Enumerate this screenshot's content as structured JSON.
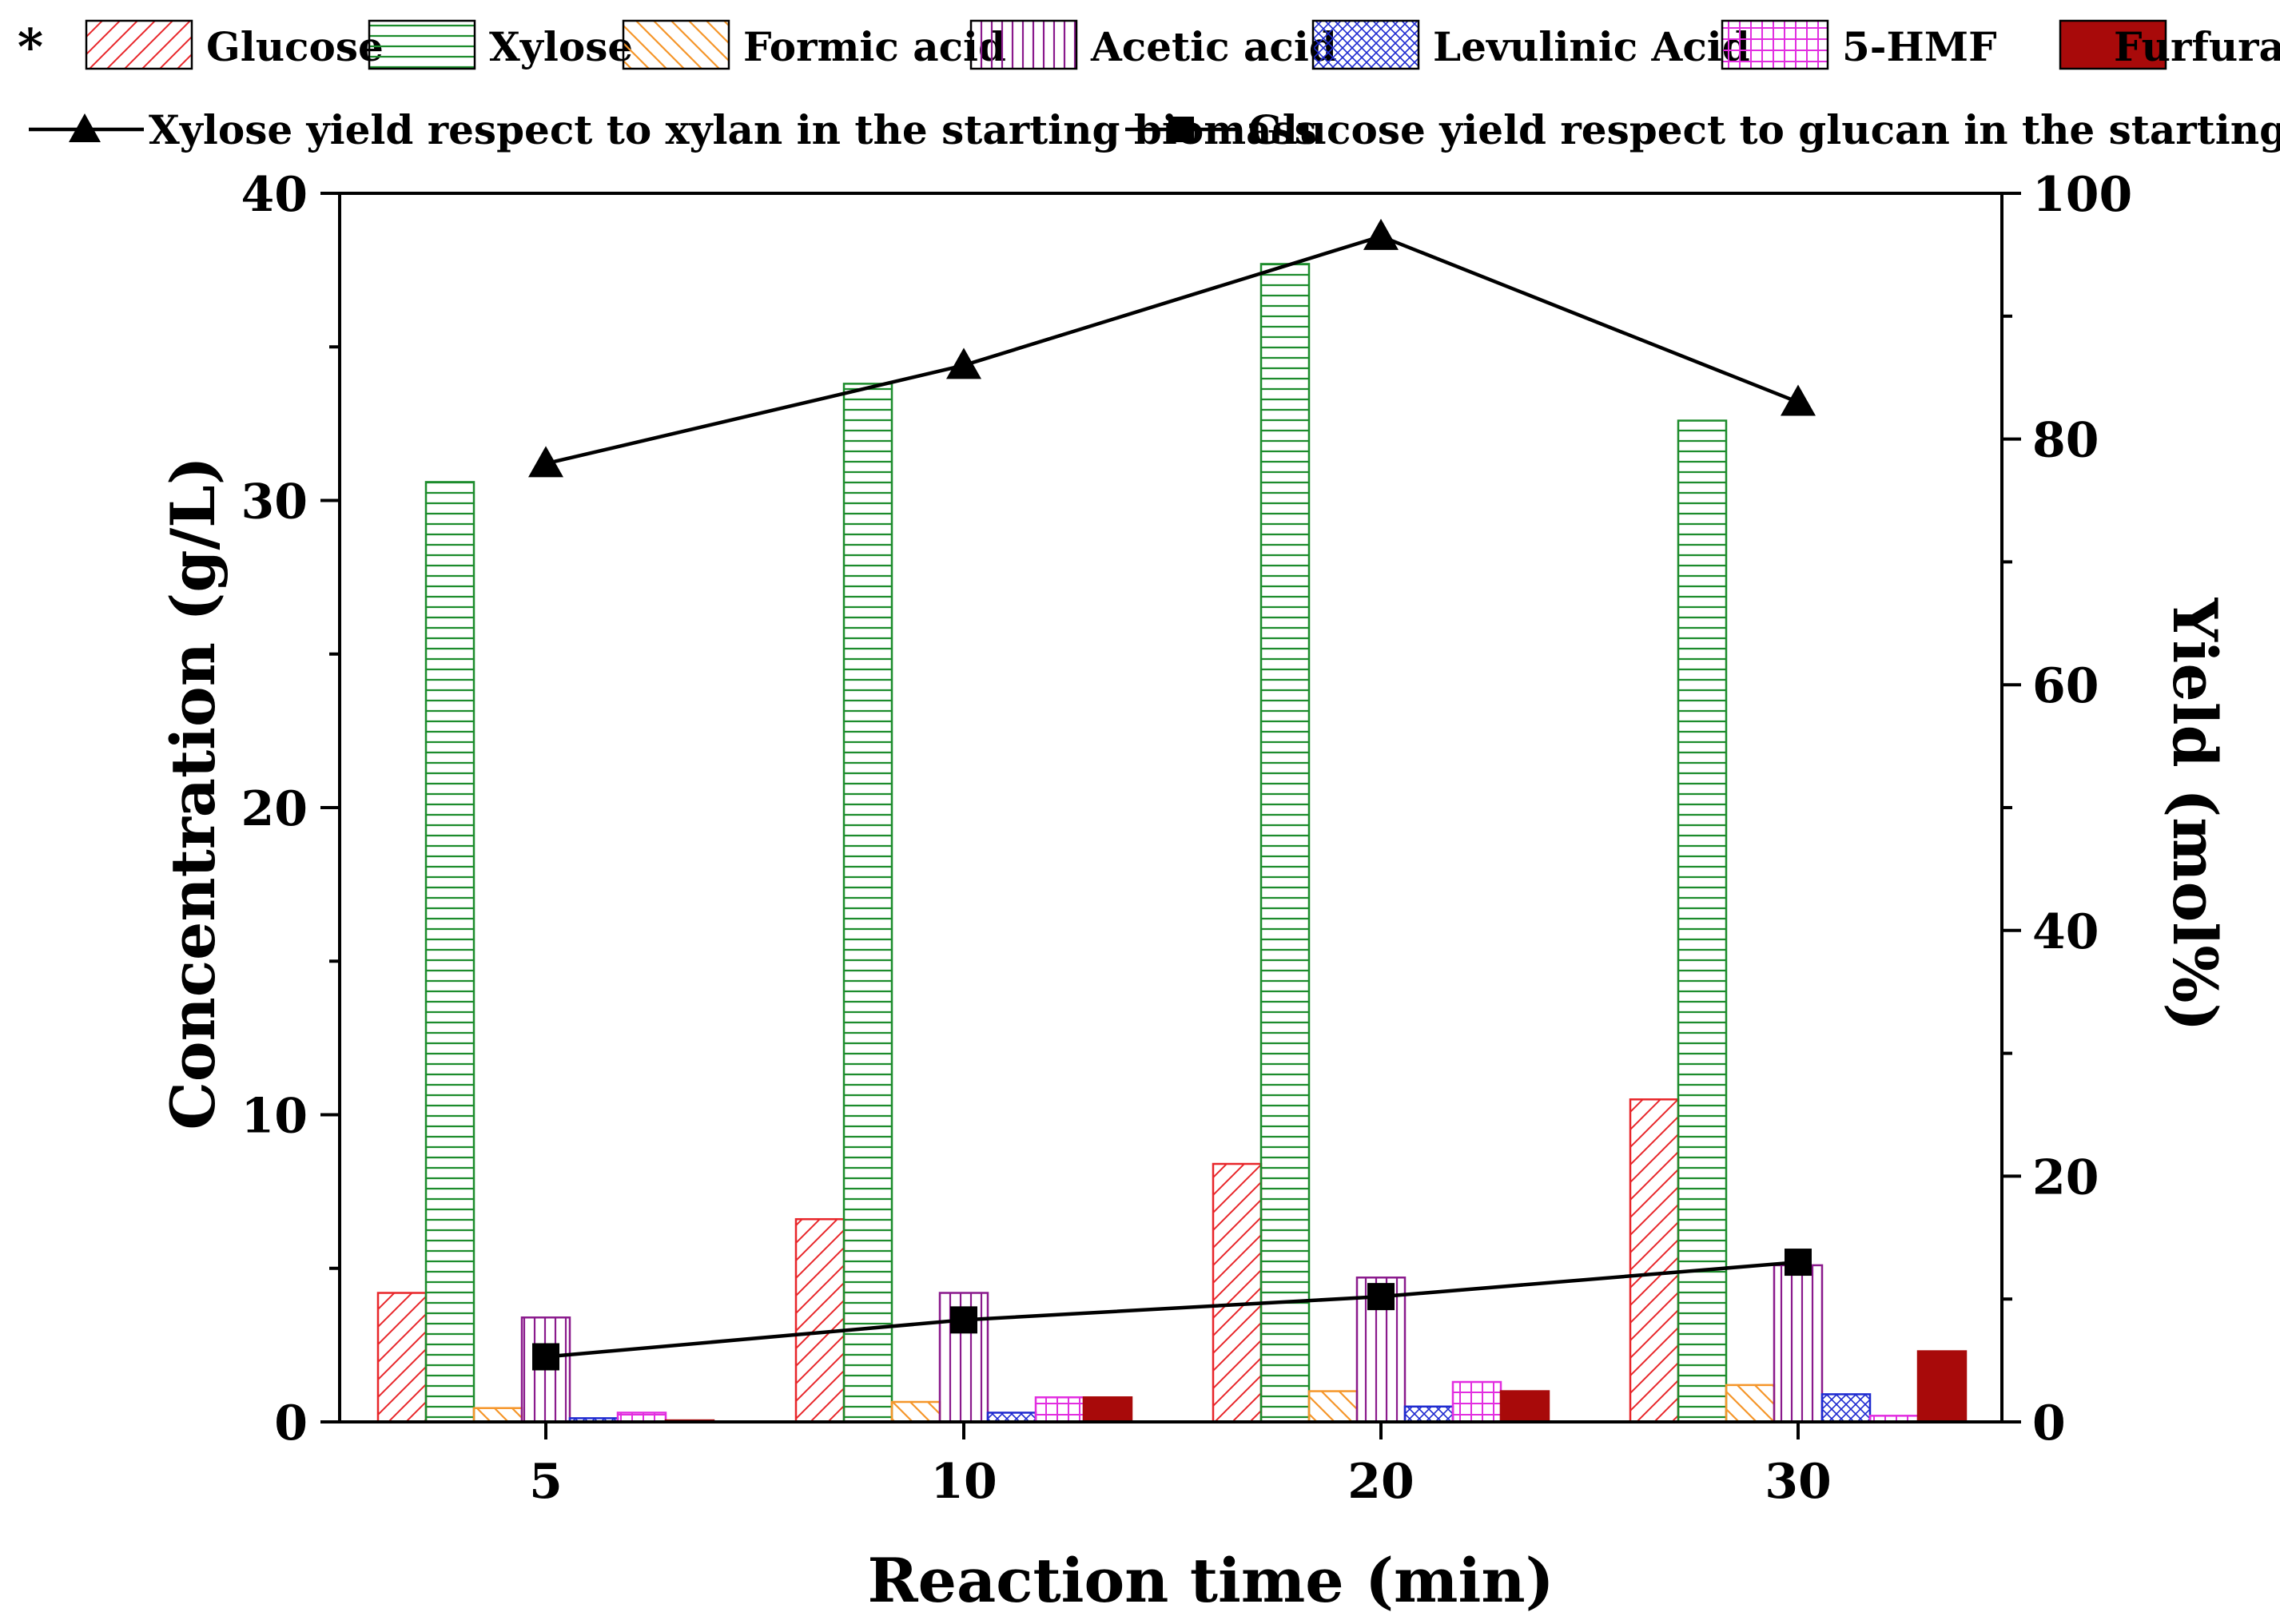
{
  "chart_data": {
    "type": "bar",
    "title": "",
    "xlabel": "Reaction time (min)",
    "ylabel": "Concentration (g/L)",
    "y2label": "Yield (mol%)",
    "categories": [
      "5",
      "10",
      "20",
      "30"
    ],
    "ylim": [
      0,
      40
    ],
    "yticks": [
      "0",
      "10",
      "20",
      "30",
      "40"
    ],
    "y2lim": [
      0,
      100
    ],
    "y2ticks": [
      "0",
      "20",
      "40",
      "60",
      "80",
      "100"
    ],
    "legend_marker": "*",
    "series": [
      {
        "name": "Glucose",
        "pattern": "diag-right",
        "color": "#e8262a",
        "values": [
          4.2,
          6.6,
          8.4,
          10.5
        ]
      },
      {
        "name": "Xylose",
        "pattern": "horizontal",
        "color": "#1c8c2c",
        "values": [
          30.6,
          33.8,
          37.7,
          32.6
        ]
      },
      {
        "name": "Formic acid",
        "pattern": "diag-left",
        "color": "#f5962a",
        "values": [
          0.45,
          0.65,
          1.0,
          1.2
        ]
      },
      {
        "name": "Acetic acid",
        "pattern": "vertical",
        "color": "#8a1a8c",
        "values": [
          3.4,
          4.2,
          4.7,
          5.1
        ]
      },
      {
        "name": "Levulinic Acid",
        "pattern": "crosshatch",
        "color": "#1e2ad0",
        "values": [
          0.12,
          0.3,
          0.5,
          0.9
        ]
      },
      {
        "name": "5-HMF",
        "pattern": "grid",
        "color": "#e22ee0",
        "values": [
          0.3,
          0.8,
          1.3,
          0.2
        ]
      },
      {
        "name": "Furfural",
        "pattern": "solid",
        "color": "#a80a0a",
        "values": [
          0.05,
          0.8,
          1.0,
          2.3
        ]
      }
    ],
    "lines": [
      {
        "name": "Xylose yield respect to xylan in the starting biomass",
        "marker": "triangle",
        "color": "#000000",
        "axis": "right",
        "values": [
          78,
          86,
          96.5,
          83
        ]
      },
      {
        "name": "Glucose yield respect to glucan in the starting biomass",
        "marker": "square",
        "color": "#000000",
        "axis": "right",
        "values": [
          5.3,
          8.3,
          10.2,
          13
        ]
      }
    ]
  }
}
